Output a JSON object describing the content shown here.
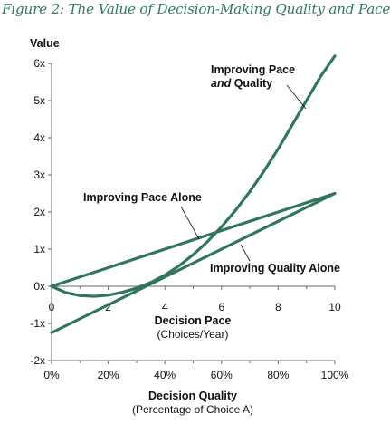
{
  "figure_title": "Figure 2: The Value of Decision-Making Quality and Pace",
  "colors": {
    "title": "#2e7a62",
    "series": "#2f7560",
    "axis": "#6a6a6a",
    "text": "#111111"
  },
  "chart_data": {
    "type": "line",
    "ylabel": "Value",
    "ylim": [
      -2,
      6
    ],
    "yticks": [
      "-2x",
      "-1x",
      "0x",
      "1x",
      "2x",
      "3x",
      "4x",
      "5x",
      "6x"
    ],
    "x_axis_top": {
      "label": "Decision Pace",
      "sublabel": "(Choices/Year)",
      "range": [
        0,
        10
      ],
      "ticks": [
        "0",
        "2",
        "4",
        "6",
        "8",
        "10"
      ]
    },
    "x_axis_bottom": {
      "label": "Decision Quality",
      "sublabel": "(Percentage of Choice A)",
      "range": [
        0,
        100
      ],
      "ticks": [
        "0%",
        "20%",
        "40%",
        "60%",
        "80%",
        "100%"
      ]
    },
    "series": [
      {
        "name": "Improving Pace Alone",
        "x_axis": "pace",
        "x": [
          0,
          10
        ],
        "y": [
          0,
          2.5
        ]
      },
      {
        "name": "Improving Quality Alone",
        "x_axis": "quality",
        "x": [
          0,
          100
        ],
        "y": [
          -1.25,
          2.5
        ]
      },
      {
        "name_line1": "Improving Pace",
        "name_line2_italic": "and",
        "name_line2_rest": " Quality",
        "x_axis": "pace",
        "x": [
          0,
          0.5,
          1,
          1.5,
          2,
          2.5,
          3,
          3.5,
          4,
          4.5,
          5,
          5.5,
          6,
          6.5,
          7,
          7.5,
          8,
          8.5,
          9,
          9.5,
          10
        ],
        "y": [
          0,
          -0.17,
          -0.25,
          -0.27,
          -0.24,
          -0.16,
          -0.05,
          0.1,
          0.3,
          0.55,
          0.85,
          1.2,
          1.6,
          2.05,
          2.55,
          3.1,
          3.7,
          4.35,
          5.0,
          5.65,
          6.2
        ]
      }
    ]
  }
}
